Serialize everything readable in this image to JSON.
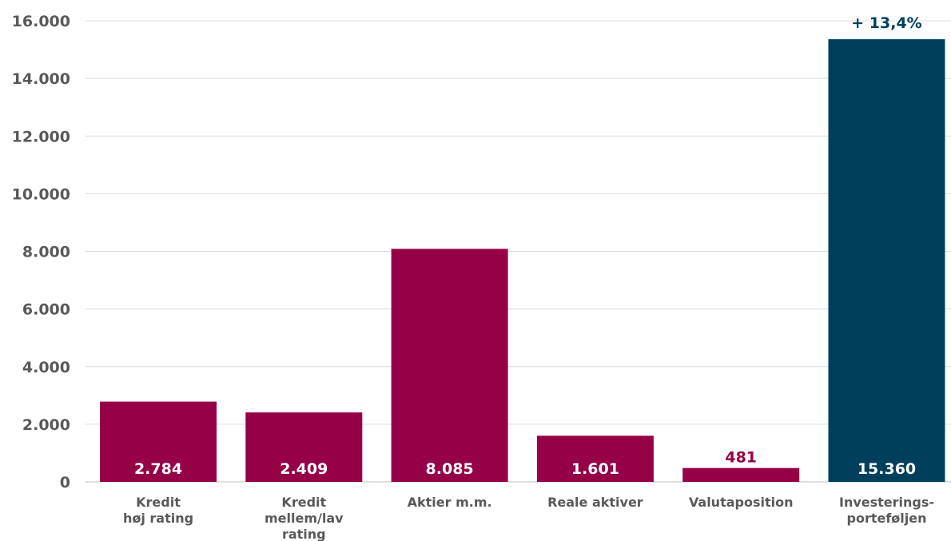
{
  "chart_data": {
    "type": "bar",
    "categories": [
      [
        "Kredit",
        "høj rating"
      ],
      [
        "Kredit",
        "mellem/lav",
        "rating"
      ],
      [
        "Aktier m.m."
      ],
      [
        "Reale aktiver"
      ],
      [
        "Valutaposition"
      ],
      [
        "Investerings-",
        "porteføljen"
      ]
    ],
    "values": [
      2784,
      2409,
      8085,
      1601,
      481,
      15360
    ],
    "value_labels": [
      "2.784",
      "2.409",
      "8.085",
      "1.601",
      "481",
      "15.360"
    ],
    "label_positions": [
      "inside",
      "inside",
      "inside",
      "inside",
      "above",
      "inside"
    ],
    "bar_colors": [
      "#950047",
      "#950047",
      "#950047",
      "#950047",
      "#950047",
      "#003f5c"
    ],
    "annotation": {
      "text": "+ 13,4%",
      "bar_index": 5,
      "color": "#003f5c"
    },
    "ylim": [
      0,
      16000
    ],
    "yticks": [
      0,
      2000,
      4000,
      6000,
      8000,
      10000,
      12000,
      14000,
      16000
    ],
    "ytick_labels": [
      "0",
      "2.000",
      "4.000",
      "6.000",
      "8.000",
      "10.000",
      "12.000",
      "14.000",
      "16.000"
    ],
    "grid": true,
    "title": "",
    "xlabel": "",
    "ylabel": ""
  }
}
